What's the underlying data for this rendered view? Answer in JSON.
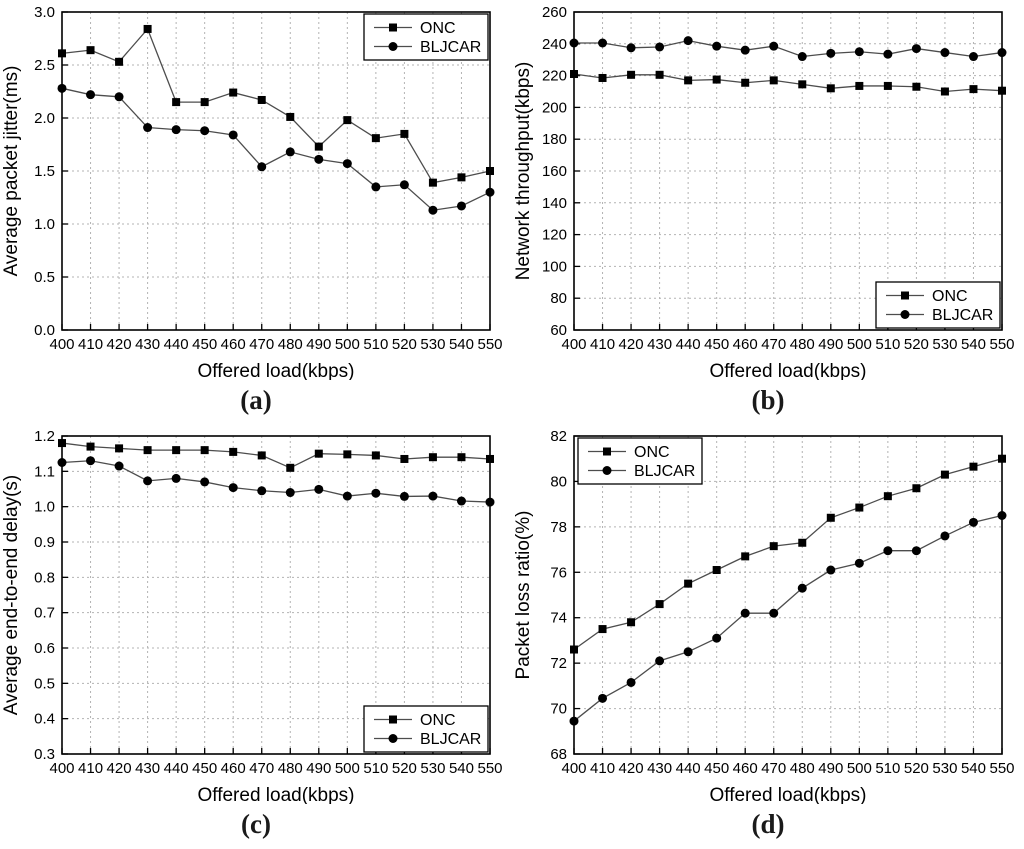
{
  "figure": {
    "background": "#ffffff"
  },
  "style": {
    "line_color": "#4d4d4d",
    "marker_color": "#000000",
    "grid_color": "#b3b3b3",
    "axis_color": "#000000",
    "text_color": "#000000",
    "legend_border": "#000000",
    "legend_fill": "#ffffff"
  },
  "chart_data": [
    {
      "type": "line",
      "panel_label": "(a)",
      "xlabel": "Offered load(kbps)",
      "ylabel": "Average packet jitter(ms)",
      "x": [
        400,
        410,
        420,
        430,
        440,
        450,
        460,
        470,
        480,
        490,
        500,
        510,
        520,
        530,
        540,
        550
      ],
      "ylim": [
        0.0,
        3.0
      ],
      "ytick_step": 0.5,
      "ytick_decimals": 1,
      "grid": true,
      "legend_position": "top-right",
      "series": [
        {
          "name": "ONC",
          "marker": "square",
          "values": [
            2.61,
            2.64,
            2.53,
            2.84,
            2.15,
            2.15,
            2.24,
            2.17,
            2.01,
            1.73,
            1.98,
            1.81,
            1.85,
            1.39,
            1.44,
            1.5
          ]
        },
        {
          "name": "BLJCAR",
          "marker": "circle",
          "values": [
            2.28,
            2.22,
            2.2,
            1.91,
            1.89,
            1.88,
            1.84,
            1.54,
            1.68,
            1.61,
            1.57,
            1.35,
            1.37,
            1.13,
            1.17,
            1.3
          ]
        }
      ]
    },
    {
      "type": "line",
      "panel_label": "(b)",
      "xlabel": "Offered load(kbps)",
      "ylabel": "Network throughput(kbps)",
      "x": [
        400,
        410,
        420,
        430,
        440,
        450,
        460,
        470,
        480,
        490,
        500,
        510,
        520,
        530,
        540,
        550
      ],
      "ylim": [
        60,
        260
      ],
      "ytick_step": 20,
      "ytick_decimals": 0,
      "grid": true,
      "legend_position": "bottom-right",
      "series": [
        {
          "name": "ONC",
          "marker": "square",
          "values": [
            221,
            218.5,
            220.5,
            220.5,
            217,
            217.5,
            215.5,
            217,
            214.5,
            212,
            213.5,
            213.5,
            213,
            210,
            211.5,
            210.5
          ]
        },
        {
          "name": "BLJCAR",
          "marker": "circle",
          "values": [
            240.5,
            240.5,
            237.5,
            238,
            242,
            238.5,
            236,
            238.5,
            232,
            234,
            235,
            233.5,
            237,
            234.5,
            232,
            234.5
          ]
        }
      ]
    },
    {
      "type": "line",
      "panel_label": "(c)",
      "xlabel": "Offered load(kbps)",
      "ylabel": "Average end-to-end delay(s)",
      "x": [
        400,
        410,
        420,
        430,
        440,
        450,
        460,
        470,
        480,
        490,
        500,
        510,
        520,
        530,
        540,
        550
      ],
      "ylim": [
        0.3,
        1.2
      ],
      "ytick_step": 0.1,
      "ytick_decimals": 1,
      "grid": true,
      "legend_position": "bottom-right",
      "series": [
        {
          "name": "ONC",
          "marker": "square",
          "values": [
            1.18,
            1.17,
            1.165,
            1.16,
            1.16,
            1.16,
            1.155,
            1.145,
            1.11,
            1.15,
            1.148,
            1.145,
            1.135,
            1.14,
            1.14,
            1.135
          ]
        },
        {
          "name": "BLJCAR",
          "marker": "circle",
          "values": [
            1.125,
            1.13,
            1.115,
            1.073,
            1.08,
            1.07,
            1.054,
            1.045,
            1.04,
            1.049,
            1.03,
            1.038,
            1.029,
            1.03,
            1.016,
            1.013
          ]
        }
      ]
    },
    {
      "type": "line",
      "panel_label": "(d)",
      "xlabel": "Offered load(kbps)",
      "ylabel": "Packet loss ratio(%)",
      "x": [
        400,
        410,
        420,
        430,
        440,
        450,
        460,
        470,
        480,
        490,
        500,
        510,
        520,
        530,
        540,
        550
      ],
      "ylim": [
        68,
        82
      ],
      "ytick_step": 2,
      "ytick_decimals": 0,
      "grid": true,
      "legend_position": "top-left",
      "series": [
        {
          "name": "ONC",
          "marker": "square",
          "values": [
            72.6,
            73.5,
            73.8,
            74.6,
            75.5,
            76.1,
            76.7,
            77.15,
            77.3,
            78.4,
            78.85,
            79.35,
            79.7,
            80.3,
            80.65,
            81.0
          ]
        },
        {
          "name": "BLJCAR",
          "marker": "circle",
          "values": [
            69.45,
            70.45,
            71.15,
            72.1,
            72.5,
            73.1,
            74.2,
            74.2,
            75.3,
            76.1,
            76.4,
            76.95,
            76.95,
            77.6,
            78.2,
            78.5
          ]
        }
      ]
    }
  ]
}
